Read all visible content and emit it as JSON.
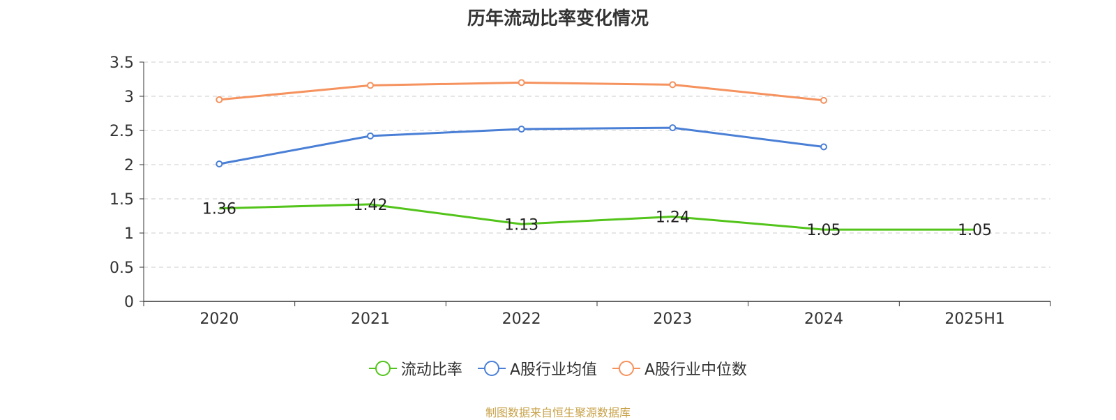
{
  "title": "历年流动比率变化情况",
  "source_note": "制图数据来自恒生聚源数据库",
  "chart_data": {
    "type": "line",
    "title": "历年流动比率变化情况",
    "categories": [
      "2020",
      "2021",
      "2022",
      "2023",
      "2024",
      "2025H1"
    ],
    "y_ticks": [
      "0",
      "0.5",
      "1",
      "1.5",
      "2",
      "2.5",
      "3",
      "3.5"
    ],
    "ylim": [
      0,
      3.5
    ],
    "grid": true,
    "legend_position": "bottom",
    "series": [
      {
        "name": "流动比率",
        "color": "#52c41a",
        "values": [
          1.36,
          1.42,
          1.13,
          1.24,
          1.05,
          1.05
        ],
        "labels": [
          "1.36",
          "1.42",
          "1.13",
          "1.24",
          "1.05",
          "1.05"
        ],
        "markers": false
      },
      {
        "name": "A股行业均值",
        "color": "#4a7fd6",
        "values": [
          2.01,
          2.42,
          2.52,
          2.54,
          2.26,
          null
        ],
        "markers": true
      },
      {
        "name": "A股行业中位数",
        "color": "#f5925e",
        "values": [
          2.95,
          3.16,
          3.2,
          3.17,
          2.94,
          null
        ],
        "markers": true
      }
    ]
  }
}
